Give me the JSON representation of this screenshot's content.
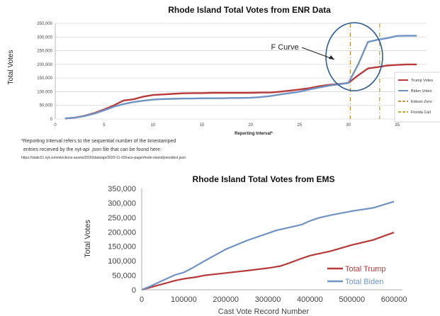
{
  "colors": {
    "trump": "#b83a3a",
    "biden": "#6f93c4",
    "edison_zero": "#c8913c",
    "florida_call": "#b8b23a",
    "grid": "#d7d7d7",
    "circle": "#2b5d99"
  },
  "chart_data": [
    {
      "type": "line",
      "title": "Rhode Island Total Votes from ENR Data",
      "xlabel": "Reporting Interval*",
      "ylabel": "Total Votes",
      "xlim": [
        0,
        38
      ],
      "ylim": [
        0,
        350000
      ],
      "x_ticks": [
        0,
        5,
        10,
        15,
        20,
        25,
        30,
        35
      ],
      "y_ticks": [
        0,
        50000,
        100000,
        150000,
        200000,
        250000,
        300000,
        350000
      ],
      "y_tick_labels": [
        "0",
        "50,000",
        "100,000",
        "150,000",
        "200,000",
        "250,000",
        "300,000",
        "350,000"
      ],
      "grid": true,
      "legend_position": "right",
      "series": [
        {
          "name": "Trump Votes",
          "x": [
            1,
            2,
            3,
            4,
            5,
            6,
            7,
            8,
            9,
            10,
            11,
            12,
            13,
            14,
            15,
            16,
            17,
            18,
            19,
            20,
            21,
            22,
            23,
            24,
            25,
            26,
            27,
            28,
            29,
            30,
            31,
            32,
            33,
            34,
            35,
            36,
            37
          ],
          "values": [
            2000,
            5000,
            12000,
            22000,
            35000,
            50000,
            68000,
            72000,
            82000,
            88000,
            90000,
            92000,
            94000,
            95000,
            95000,
            96000,
            96000,
            96000,
            96000,
            96000,
            97000,
            97000,
            100000,
            104000,
            108000,
            113000,
            120000,
            125000,
            128000,
            132000,
            160000,
            185000,
            190000,
            196000,
            198000,
            200000,
            200000
          ]
        },
        {
          "name": "Biden Votes",
          "x": [
            1,
            2,
            3,
            4,
            5,
            6,
            7,
            8,
            9,
            10,
            11,
            12,
            13,
            14,
            15,
            16,
            17,
            18,
            19,
            20,
            21,
            22,
            23,
            24,
            25,
            26,
            27,
            28,
            29,
            30,
            31,
            32,
            33,
            34,
            35,
            36,
            37
          ],
          "values": [
            2000,
            5000,
            11000,
            20000,
            32000,
            45000,
            55000,
            62000,
            67000,
            71000,
            73000,
            74000,
            75000,
            75000,
            76000,
            76000,
            76000,
            77000,
            77000,
            78000,
            80000,
            84000,
            90000,
            95000,
            100000,
            108000,
            115000,
            122000,
            127000,
            132000,
            200000,
            282000,
            290000,
            296000,
            304000,
            305000,
            305000
          ]
        }
      ],
      "reference_lines": [
        {
          "name": "Edison Zero",
          "x": 30.2
        },
        {
          "name": "Florida Call",
          "x": 33.2
        }
      ],
      "annotation": "F Curve"
    },
    {
      "type": "line",
      "title": "Rhode Island Total Votes from EMS",
      "xlabel": "Cast Vote Record Number",
      "ylabel": "Total Votes",
      "xlim": [
        0,
        620000
      ],
      "ylim": [
        0,
        350000
      ],
      "x_ticks": [
        0,
        100000,
        200000,
        300000,
        400000,
        500000,
        600000
      ],
      "x_tick_labels": [
        "0",
        "100000",
        "200000",
        "300000",
        "400000",
        "500000",
        "600000"
      ],
      "y_ticks": [
        0,
        50000,
        100000,
        150000,
        200000,
        250000,
        300000,
        350000
      ],
      "y_tick_labels": [
        "0",
        "50,000",
        "100,000",
        "150,000",
        "200,000",
        "250,000",
        "300,000",
        "350,000"
      ],
      "grid": false,
      "legend_position": "bottom-right",
      "series": [
        {
          "name": "Total Trump",
          "x": [
            0,
            20000,
            50000,
            80000,
            100000,
            130000,
            150000,
            200000,
            250000,
            300000,
            330000,
            350000,
            380000,
            400000,
            450000,
            500000,
            550000,
            580000,
            600000
          ],
          "values": [
            0,
            8000,
            20000,
            32000,
            38000,
            44000,
            50000,
            58000,
            66000,
            75000,
            82000,
            92000,
            108000,
            118000,
            134000,
            155000,
            172000,
            188000,
            198000
          ]
        },
        {
          "name": "Total Biden",
          "x": [
            0,
            20000,
            50000,
            80000,
            100000,
            120000,
            150000,
            200000,
            250000,
            300000,
            320000,
            350000,
            380000,
            400000,
            420000,
            450000,
            500000,
            550000,
            600000
          ],
          "values": [
            0,
            12000,
            32000,
            52000,
            60000,
            75000,
            100000,
            140000,
            170000,
            195000,
            205000,
            215000,
            225000,
            238000,
            248000,
            258000,
            272000,
            283000,
            305000
          ]
        }
      ]
    }
  ],
  "notes": {
    "line1": "*Reporting Interval refers to the sequential number of the timestamped",
    "line2": "entries recieved by the nyt-api .json file that can be found here:",
    "url": "https://static01.nyt.com/elections-assets/2020/data/api/2020-11-03/race-page/rhode-island/president.json"
  }
}
